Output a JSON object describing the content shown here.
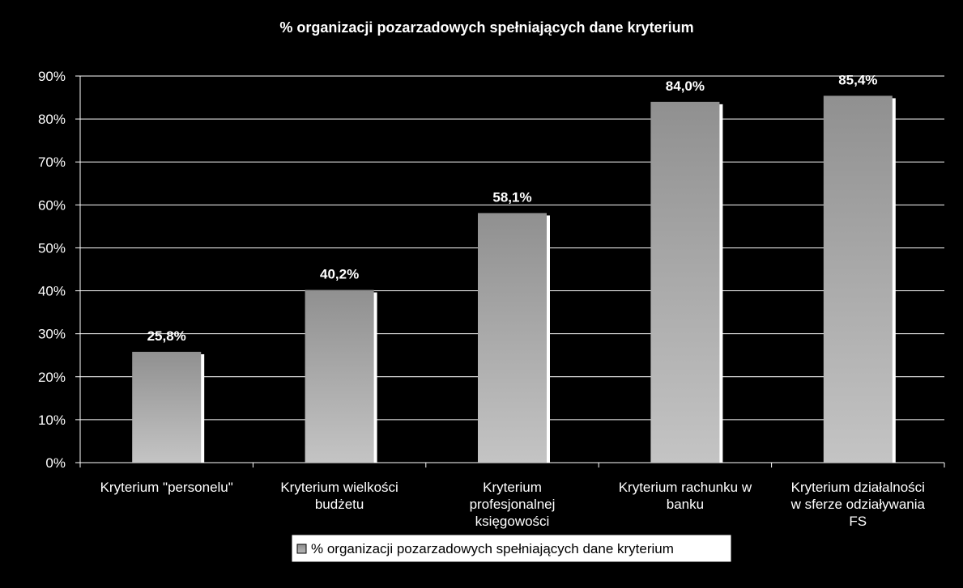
{
  "chart_data": {
    "type": "bar",
    "title": "% organizacji pozarzadowych spełniających dane kryterium",
    "categories": [
      [
        "Kryterium \"personelu\""
      ],
      [
        "Kryterium wielkości",
        "budżetu"
      ],
      [
        "Kryterium",
        "profesjonalnej",
        "księgowości"
      ],
      [
        "Kryterium rachunku w",
        "banku"
      ],
      [
        "Kryterium działalności",
        "w sferze odziaływania",
        "FS"
      ]
    ],
    "series": [
      {
        "name": "% organizacji pozarzadowych spełniających dane kryterium",
        "values": [
          25.8,
          40.2,
          58.1,
          84.0,
          85.4
        ],
        "value_labels": [
          "25,8%",
          "40,2%",
          "58,1%",
          "84,0%",
          "85,4%"
        ]
      }
    ],
    "y_ticks": [
      "0%",
      "10%",
      "20%",
      "30%",
      "40%",
      "50%",
      "60%",
      "70%",
      "80%",
      "90%"
    ],
    "ylim": [
      0,
      90
    ],
    "grid": true,
    "legend_position": "bottom",
    "colors": {
      "background": "#000000",
      "bar_top": "#909090",
      "bar_bottom": "#c4c4c4",
      "bar_shadow": "#ffffff",
      "gridline": "#ffffff",
      "text": "#ffffff"
    }
  }
}
